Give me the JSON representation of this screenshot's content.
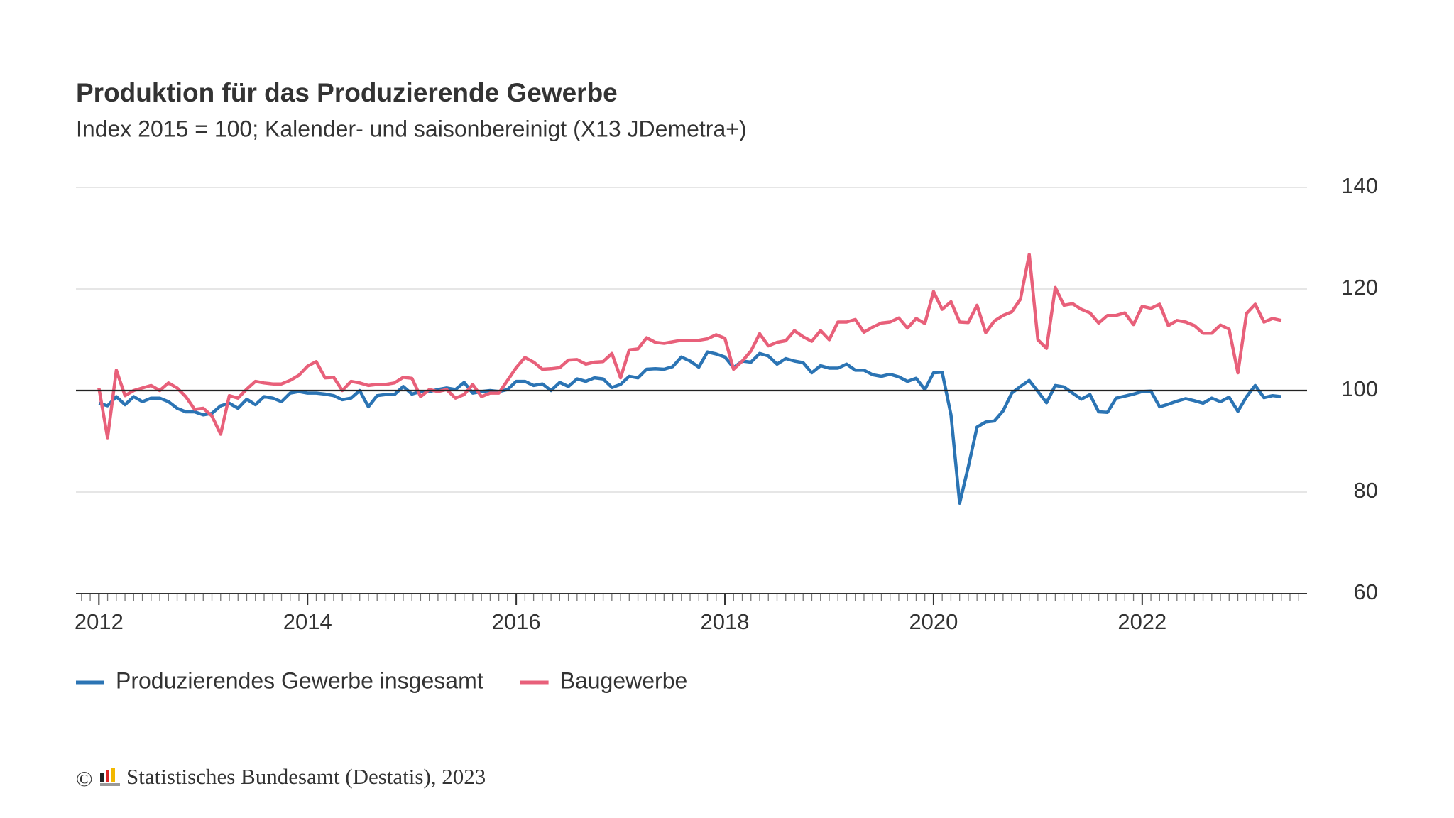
{
  "chart_data": {
    "type": "line",
    "title": "Produktion für das Produzierende Gewerbe",
    "subtitle": "Index 2015 = 100; Kalender- und saisonbereinigt (X13 JDemetra+)",
    "x": [
      2012,
      2012.083,
      2012.167,
      2012.25,
      2012.333,
      2012.417,
      2012.5,
      2012.583,
      2012.667,
      2012.75,
      2012.833,
      2012.917,
      2013,
      2013.083,
      2013.167,
      2013.25,
      2013.333,
      2013.417,
      2013.5,
      2013.583,
      2013.667,
      2013.75,
      2013.833,
      2013.917,
      2014,
      2014.083,
      2014.167,
      2014.25,
      2014.333,
      2014.417,
      2014.5,
      2014.583,
      2014.667,
      2014.75,
      2014.833,
      2014.917,
      2015,
      2015.083,
      2015.167,
      2015.25,
      2015.333,
      2015.417,
      2015.5,
      2015.583,
      2015.667,
      2015.75,
      2015.833,
      2015.917,
      2016,
      2016.083,
      2016.167,
      2016.25,
      2016.333,
      2016.417,
      2016.5,
      2016.583,
      2016.667,
      2016.75,
      2016.833,
      2016.917,
      2017,
      2017.083,
      2017.167,
      2017.25,
      2017.333,
      2017.417,
      2017.5,
      2017.583,
      2017.667,
      2017.75,
      2017.833,
      2017.917,
      2018,
      2018.083,
      2018.167,
      2018.25,
      2018.333,
      2018.417,
      2018.5,
      2018.583,
      2018.667,
      2018.75,
      2018.833,
      2018.917,
      2019,
      2019.083,
      2019.167,
      2019.25,
      2019.333,
      2019.417,
      2019.5,
      2019.583,
      2019.667,
      2019.75,
      2019.833,
      2019.917,
      2020,
      2020.083,
      2020.167,
      2020.25,
      2020.333,
      2020.417,
      2020.5,
      2020.583,
      2020.667,
      2020.75,
      2020.833,
      2020.917,
      2021,
      2021.083,
      2021.167,
      2021.25,
      2021.333,
      2021.417,
      2021.5,
      2021.583,
      2021.667,
      2021.75,
      2021.833,
      2021.917,
      2022,
      2022.083,
      2022.167,
      2022.25,
      2022.333,
      2022.417,
      2022.5,
      2022.583,
      2022.667,
      2022.75,
      2022.833,
      2022.917,
      2023,
      2023.083,
      2023.167,
      2023.25,
      2023.333
    ],
    "series": [
      {
        "name": "Produzierendes Gewerbe insgesamt",
        "color": "#2b74b4",
        "values": [
          97.5,
          97,
          98.8,
          97.2,
          98.8,
          97.8,
          98.5,
          98.5,
          97.8,
          96.5,
          95.8,
          95.8,
          95.2,
          95.5,
          97,
          97.5,
          96.5,
          98.3,
          97.2,
          98.8,
          98.5,
          97.8,
          99.5,
          99.8,
          99.5,
          99.5,
          99.3,
          99,
          98.2,
          98.5,
          100,
          96.8,
          99,
          99.2,
          99.2,
          100.8,
          99.3,
          99.8,
          99.8,
          100.2,
          100.5,
          100.2,
          101.6,
          99.5,
          99.8,
          100,
          99.8,
          100.2,
          101.8,
          101.8,
          101,
          101.3,
          100,
          101.6,
          100.8,
          102.3,
          101.8,
          102.5,
          102.3,
          100.6,
          101.2,
          102.8,
          102.5,
          104.2,
          104.3,
          104.2,
          104.7,
          106.6,
          105.8,
          104.6,
          107.6,
          107.2,
          106.6,
          104.5,
          105.8,
          105.6,
          107.3,
          106.8,
          105.2,
          106.3,
          105.8,
          105.5,
          103.5,
          104.9,
          104.4,
          104.4,
          105.2,
          104,
          104,
          103.1,
          102.8,
          103.2,
          102.7,
          101.8,
          102.4,
          100.2,
          103.5,
          103.6,
          95.2,
          77.8,
          85,
          92.8,
          93.8,
          94,
          96,
          99.5,
          100.8,
          102,
          99.8,
          97.6,
          101,
          100.7,
          99.5,
          98.3,
          99.2,
          95.8,
          95.7,
          98.5,
          98.9,
          99.3,
          99.8,
          99.9,
          96.8,
          97.3,
          97.9,
          98.4,
          98,
          97.5,
          98.5,
          97.8,
          98.7,
          95.9,
          98.8,
          101,
          98.6,
          99,
          98.8
        ]
      },
      {
        "name": "Baugewerbe",
        "color": "#e8607a",
        "values": [
          100.5,
          90.7,
          104,
          99,
          100,
          100.5,
          101,
          100,
          101.5,
          100.5,
          98.8,
          96.3,
          96.5,
          95,
          91.4,
          99,
          98.5,
          100.3,
          101.8,
          101.5,
          101.3,
          101.3,
          102,
          103,
          104.8,
          105.7,
          102.5,
          102.6,
          100,
          101.8,
          101.5,
          101,
          101.2,
          101.2,
          101.5,
          102.6,
          102.4,
          98.8,
          100.2,
          99.8,
          100.2,
          98.5,
          99.2,
          101.2,
          98.8,
          99.5,
          99.5,
          102,
          104.5,
          106.5,
          105.6,
          104.2,
          104.3,
          104.5,
          106,
          106.1,
          105.2,
          105.6,
          105.7,
          107.3,
          102.5,
          108,
          108.2,
          110.4,
          109.5,
          109.3,
          109.6,
          109.9,
          109.9,
          109.9,
          110.2,
          111,
          110.3,
          104.2,
          105.8,
          107.8,
          111.2,
          108.8,
          109.5,
          109.8,
          111.8,
          110.6,
          109.7,
          111.8,
          110,
          113.5,
          113.5,
          114,
          111.5,
          112.5,
          113.3,
          113.5,
          114.3,
          112.3,
          114.2,
          113.2,
          119.5,
          116,
          117.5,
          113.5,
          113.4,
          116.8,
          111.4,
          113.7,
          114.8,
          115.5,
          118,
          126.8,
          110,
          108.3,
          120.3,
          116.8,
          117.1,
          116,
          115.3,
          113.3,
          114.8,
          114.8,
          115.3,
          113,
          116.6,
          116.2,
          117,
          112.8,
          113.8,
          113.5,
          112.8,
          111.3,
          111.3,
          112.9,
          112.1,
          103.5,
          115.2,
          117,
          113.5,
          114.2,
          113.8
        ]
      }
    ],
    "xlim": [
      2011.78,
      2023.58
    ],
    "xticks": [
      2012,
      2014,
      2016,
      2018,
      2020,
      2022
    ],
    "ylim": [
      60,
      140
    ],
    "yticks": [
      60,
      80,
      100,
      120,
      140
    ],
    "baseline": 100,
    "grid": true,
    "legend": "bottom",
    "copyright": "©",
    "source": "Statistisches Bundesamt (Destatis), 2023"
  }
}
